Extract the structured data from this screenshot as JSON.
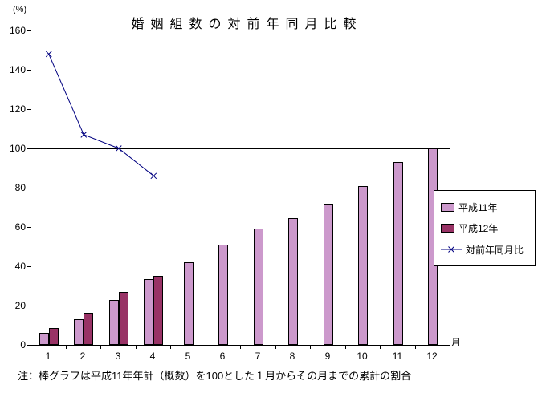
{
  "title": "婚姻組数の対前年同月比較",
  "y_unit": "(%)",
  "x_unit": "月",
  "note": "注：棒グラフは平成11年年計（概数）を100とした１月からその月までの累計の割合",
  "colors": {
    "h11": "#CC99CC",
    "h12": "#993366",
    "line": "#000080"
  },
  "chart_data": {
    "type": "bar+line",
    "categories": [
      1,
      2,
      3,
      4,
      5,
      6,
      7,
      8,
      9,
      10,
      11,
      12
    ],
    "series": [
      {
        "name": "平成11年",
        "type": "bar",
        "values": [
          6,
          13,
          23,
          33.5,
          42,
          51,
          59,
          64.5,
          72,
          81,
          93,
          100
        ]
      },
      {
        "name": "平成12年",
        "type": "bar",
        "values": [
          8.5,
          16.5,
          27,
          35,
          null,
          null,
          null,
          null,
          null,
          null,
          null,
          null
        ]
      },
      {
        "name": "対前年同月比",
        "type": "line",
        "values": [
          148,
          107,
          100,
          86,
          null,
          null,
          null,
          null,
          null,
          null,
          null,
          null
        ]
      }
    ],
    "ylim": [
      0,
      160
    ],
    "y_ticks": [
      0,
      20,
      40,
      60,
      80,
      100,
      120,
      140,
      160
    ],
    "reference_line": 100,
    "grid": "off",
    "legend_position": "right"
  }
}
